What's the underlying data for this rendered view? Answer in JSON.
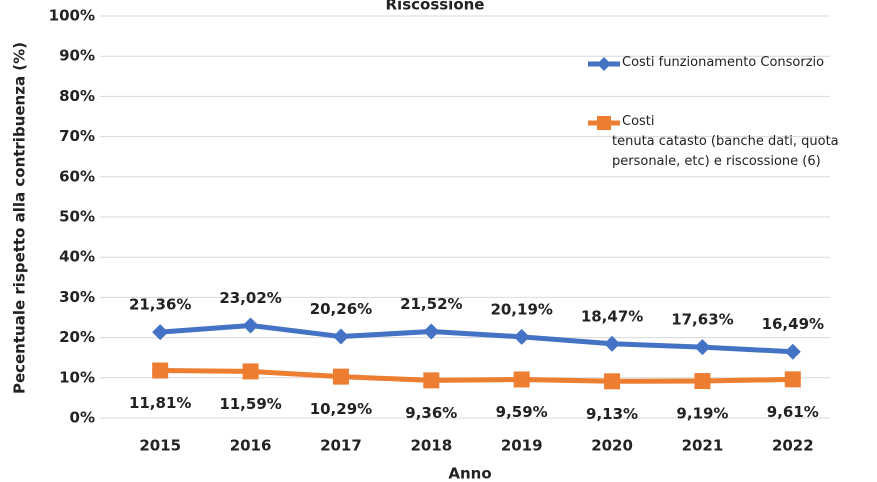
{
  "chart_data": {
    "type": "line",
    "title": "Riscossione",
    "x_label": "Anno",
    "y_label": "Pecentuale rispetto alla contribuenza (%)",
    "categories": [
      "2015",
      "2016",
      "2017",
      "2018",
      "2019",
      "2020",
      "2021",
      "2022"
    ],
    "series": [
      {
        "name": "Costi funzionamento Consorzio",
        "color": "#4472c4",
        "marker": "diamond",
        "values": [
          21.36,
          23.02,
          20.26,
          21.52,
          20.19,
          18.47,
          17.63,
          16.49
        ],
        "value_labels": [
          "21,36%",
          "23,02%",
          "20,26%",
          "21,52%",
          "20,19%",
          "18,47%",
          "17,63%",
          "16,49%"
        ]
      },
      {
        "name": "Costi\ntenuta catasto (banche dati, quota personale, etc) e riscossione (6)",
        "color": "#ed7d31",
        "marker": "square",
        "values": [
          11.81,
          11.59,
          10.29,
          9.36,
          9.59,
          9.13,
          9.19,
          9.61
        ],
        "value_labels": [
          "11,81%",
          "11,59%",
          "10,29%",
          "9,36%",
          "9,59%",
          "9,13%",
          "9,19%",
          "9,61%"
        ]
      }
    ],
    "ylim": [
      0,
      100
    ],
    "yticks": [
      {
        "value": 0,
        "label": "0%"
      },
      {
        "value": 10,
        "label": "10%"
      },
      {
        "value": 20,
        "label": "20%"
      },
      {
        "value": 30,
        "label": "30%"
      },
      {
        "value": 40,
        "label": "40%"
      },
      {
        "value": 50,
        "label": "50%"
      },
      {
        "value": 60,
        "label": "60%"
      },
      {
        "value": 70,
        "label": "70%"
      },
      {
        "value": 80,
        "label": "80%"
      },
      {
        "value": 90,
        "label": "90%"
      },
      {
        "value": 100,
        "label": "100%"
      }
    ],
    "grid": true
  }
}
